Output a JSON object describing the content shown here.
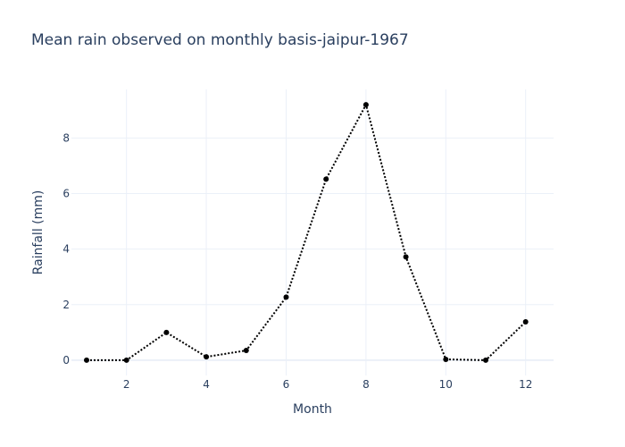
{
  "chart_data": {
    "type": "line",
    "title": "Mean rain observed on monthly basis-jaipur-1967",
    "xlabel": "Month",
    "ylabel": "Rainfall (mm)",
    "x": [
      1,
      2,
      3,
      4,
      5,
      6,
      7,
      8,
      9,
      10,
      11,
      12
    ],
    "series": [
      {
        "values": [
          0.0,
          0.0,
          1.0,
          0.12,
          0.35,
          2.27,
          6.52,
          9.2,
          3.72,
          0.03,
          0.0,
          1.38
        ]
      }
    ],
    "xlim": [
      0.62,
      12.7
    ],
    "ylim": [
      -0.55,
      9.75
    ],
    "xticks": [
      2,
      4,
      6,
      8,
      10,
      12
    ],
    "yticks": [
      0,
      2,
      4,
      6,
      8
    ],
    "grid": true,
    "line_style": "dotted",
    "marker": "circle",
    "line_color": "#000000",
    "text_color": "#2a3f5f",
    "grid_color": "#ebf0f8"
  }
}
